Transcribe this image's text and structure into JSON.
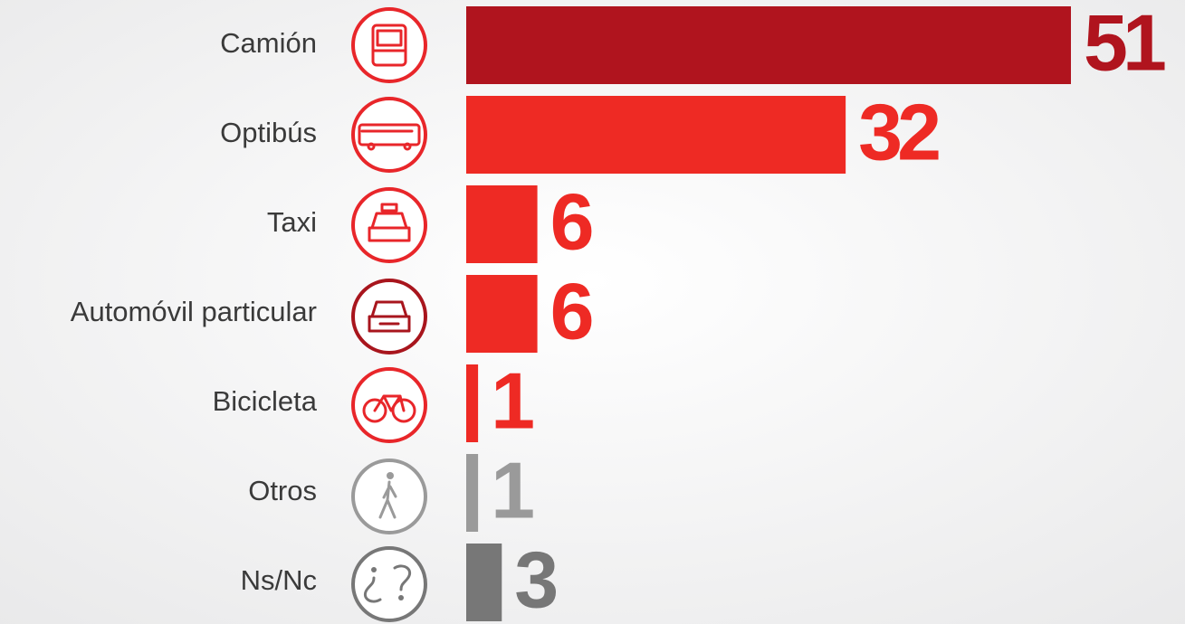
{
  "chart_data": {
    "type": "hbar",
    "categories": [
      "Camión",
      "Optibús",
      "Taxi",
      "Automóvil particular",
      "Bicicleta",
      "Otros",
      "Ns/Nc"
    ],
    "values": [
      51,
      32,
      6,
      6,
      1,
      1,
      3
    ],
    "colors": [
      "#b0141e",
      "#ee2a24",
      "#ee2a24",
      "#ee2a24",
      "#ee2a24",
      "#9a9a9a",
      "#777777"
    ]
  }
}
